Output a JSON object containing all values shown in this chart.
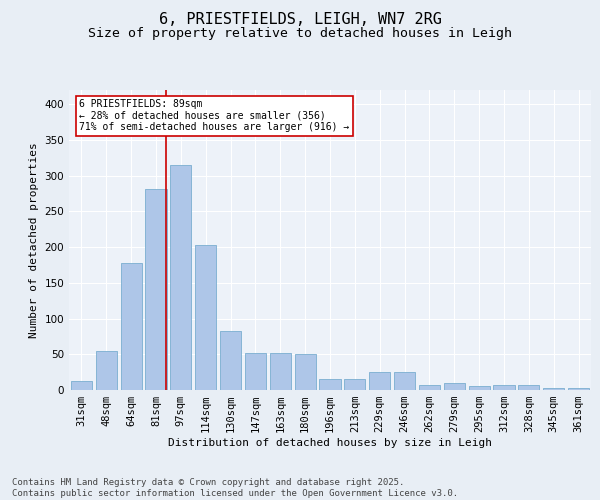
{
  "title": "6, PRIESTFIELDS, LEIGH, WN7 2RG",
  "subtitle": "Size of property relative to detached houses in Leigh",
  "xlabel": "Distribution of detached houses by size in Leigh",
  "ylabel": "Number of detached properties",
  "categories": [
    "31sqm",
    "48sqm",
    "64sqm",
    "81sqm",
    "97sqm",
    "114sqm",
    "130sqm",
    "147sqm",
    "163sqm",
    "180sqm",
    "196sqm",
    "213sqm",
    "229sqm",
    "246sqm",
    "262sqm",
    "279sqm",
    "295sqm",
    "312sqm",
    "328sqm",
    "345sqm",
    "361sqm"
  ],
  "values": [
    12,
    54,
    178,
    282,
    315,
    203,
    83,
    52,
    52,
    50,
    15,
    15,
    25,
    25,
    7,
    10,
    5,
    7,
    7,
    3,
    3
  ],
  "bar_color": "#aec6e8",
  "bar_edge_color": "#7aaed0",
  "vline_x_index": 3.42,
  "vline_color": "#cc0000",
  "annotation_text": "6 PRIESTFIELDS: 89sqm\n← 28% of detached houses are smaller (356)\n71% of semi-detached houses are larger (916) →",
  "annotation_box_color": "#ffffff",
  "annotation_box_edge": "#cc0000",
  "ylim": [
    0,
    420
  ],
  "yticks": [
    0,
    50,
    100,
    150,
    200,
    250,
    300,
    350,
    400
  ],
  "bg_color": "#e8eef5",
  "plot_bg_color": "#edf2f9",
  "footer": "Contains HM Land Registry data © Crown copyright and database right 2025.\nContains public sector information licensed under the Open Government Licence v3.0.",
  "title_fontsize": 11,
  "subtitle_fontsize": 9.5,
  "axis_label_fontsize": 8,
  "tick_fontsize": 7.5,
  "footer_fontsize": 6.5
}
